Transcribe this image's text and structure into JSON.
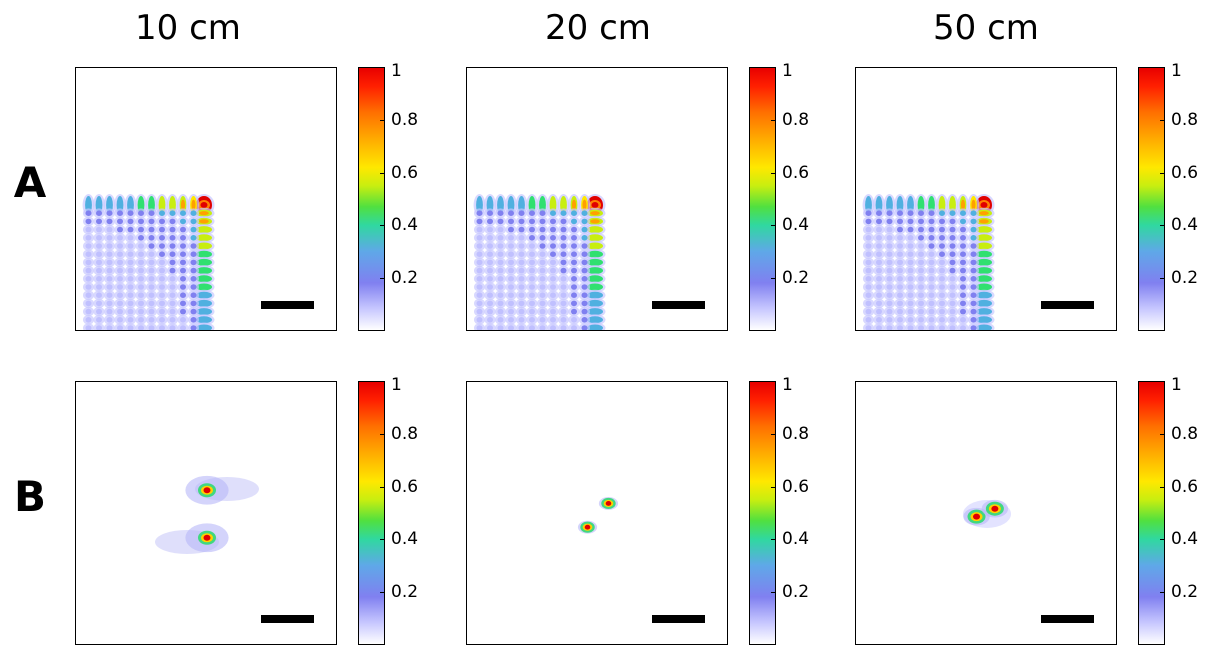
{
  "columns": [
    {
      "title": "10 cm"
    },
    {
      "title": "20 cm"
    },
    {
      "title": "50 cm"
    }
  ],
  "rows": [
    {
      "label": "A",
      "pattern": "grid"
    },
    {
      "label": "B",
      "pattern": "spots"
    }
  ],
  "colorbar": {
    "ticks": [
      {
        "value": 1,
        "label": "1"
      },
      {
        "value": 0.8,
        "label": "0.8"
      },
      {
        "value": 0.6,
        "label": "0.6"
      },
      {
        "value": 0.4,
        "label": "0.4"
      },
      {
        "value": 0.2,
        "label": "0.2"
      }
    ],
    "range": [
      0,
      1
    ],
    "colormap": [
      "#ffffff",
      "#8080f0",
      "#30d8a0",
      "#ffe800",
      "#ff7000",
      "#e80000"
    ]
  },
  "panels": {
    "A": [
      {
        "column": "10 cm",
        "grid_cols": 12,
        "grid_rows": 16
      },
      {
        "column": "20 cm",
        "grid_cols": 12,
        "grid_rows": 16
      },
      {
        "column": "50 cm",
        "grid_cols": 12,
        "grid_rows": 16
      }
    ],
    "B": [
      {
        "column": "10 cm",
        "spots": [
          {
            "dx": 0.0,
            "dy": -0.09,
            "peak": 1
          },
          {
            "dx": 0.0,
            "dy": 0.09,
            "peak": 1
          }
        ],
        "spread": "wide"
      },
      {
        "column": "20 cm",
        "spots": [
          {
            "dx": 0.04,
            "dy": -0.04,
            "peak": 1
          },
          {
            "dx": -0.04,
            "dy": 0.05,
            "peak": 1
          }
        ],
        "spread": "small"
      },
      {
        "column": "50 cm",
        "spots": [
          {
            "dx": -0.04,
            "dy": 0.01,
            "peak": 1
          },
          {
            "dx": 0.03,
            "dy": -0.02,
            "peak": 1
          }
        ],
        "spread": "medium"
      }
    ]
  }
}
